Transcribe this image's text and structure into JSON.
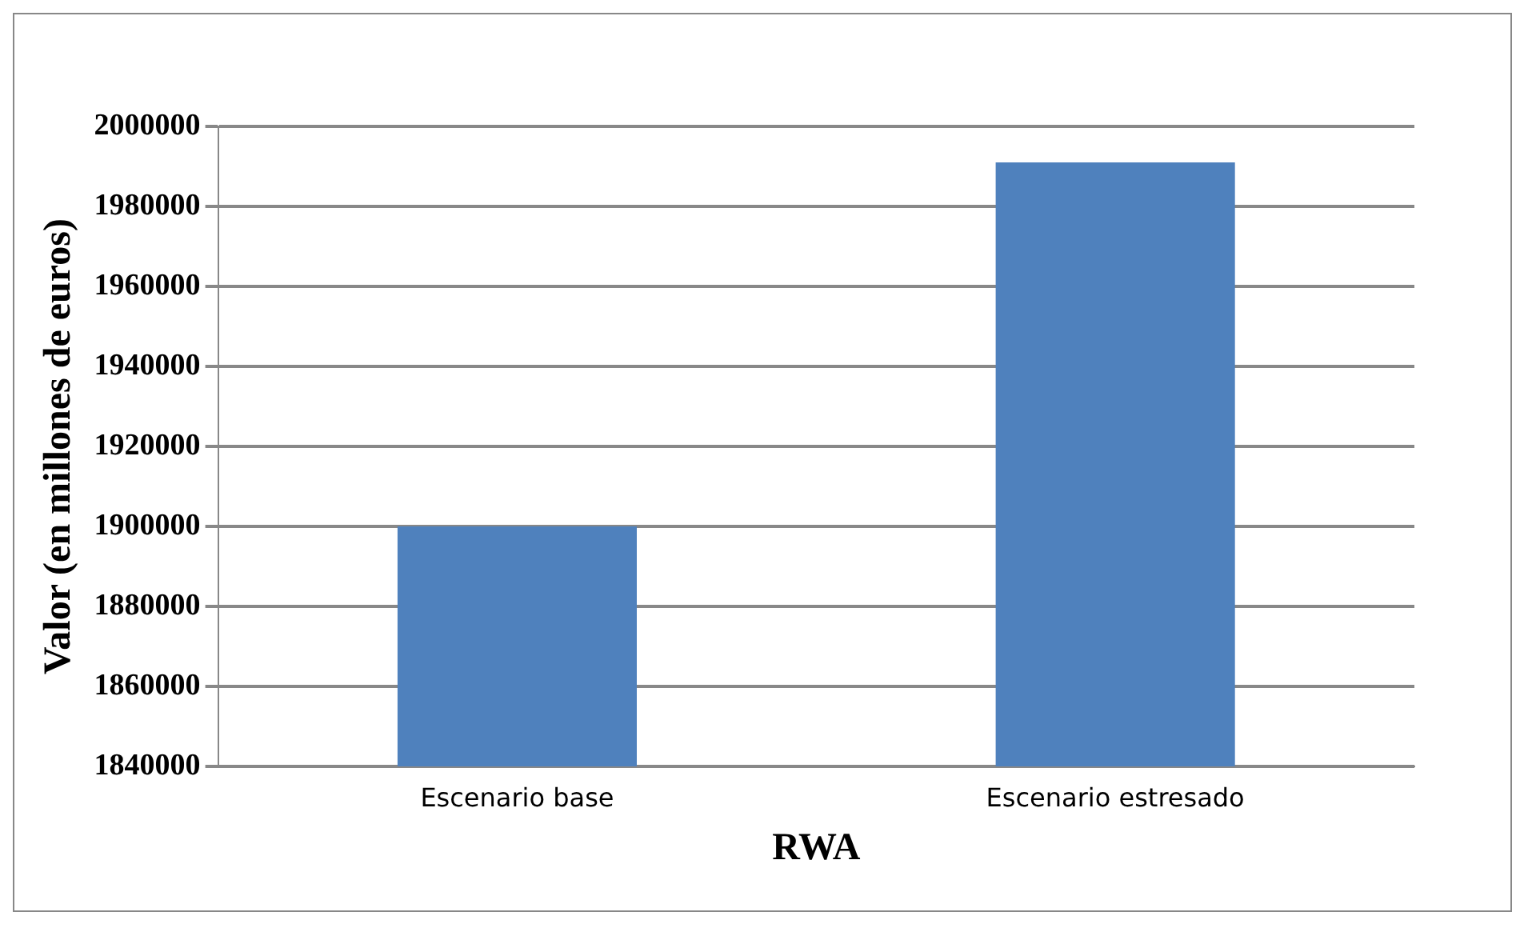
{
  "chart_data": {
    "type": "bar",
    "xlabel": "RWA",
    "ylabel": "Valor (en millones de euros)",
    "categories": [
      "Escenario base",
      "Escenario estresado"
    ],
    "values": [
      1900000,
      1991000
    ],
    "color": "#4f81bd",
    "ylim": [
      1840000,
      2000000
    ],
    "yticks": [
      1840000,
      1860000,
      1880000,
      1900000,
      1920000,
      1940000,
      1960000,
      1980000,
      2000000
    ],
    "grid": "y"
  }
}
